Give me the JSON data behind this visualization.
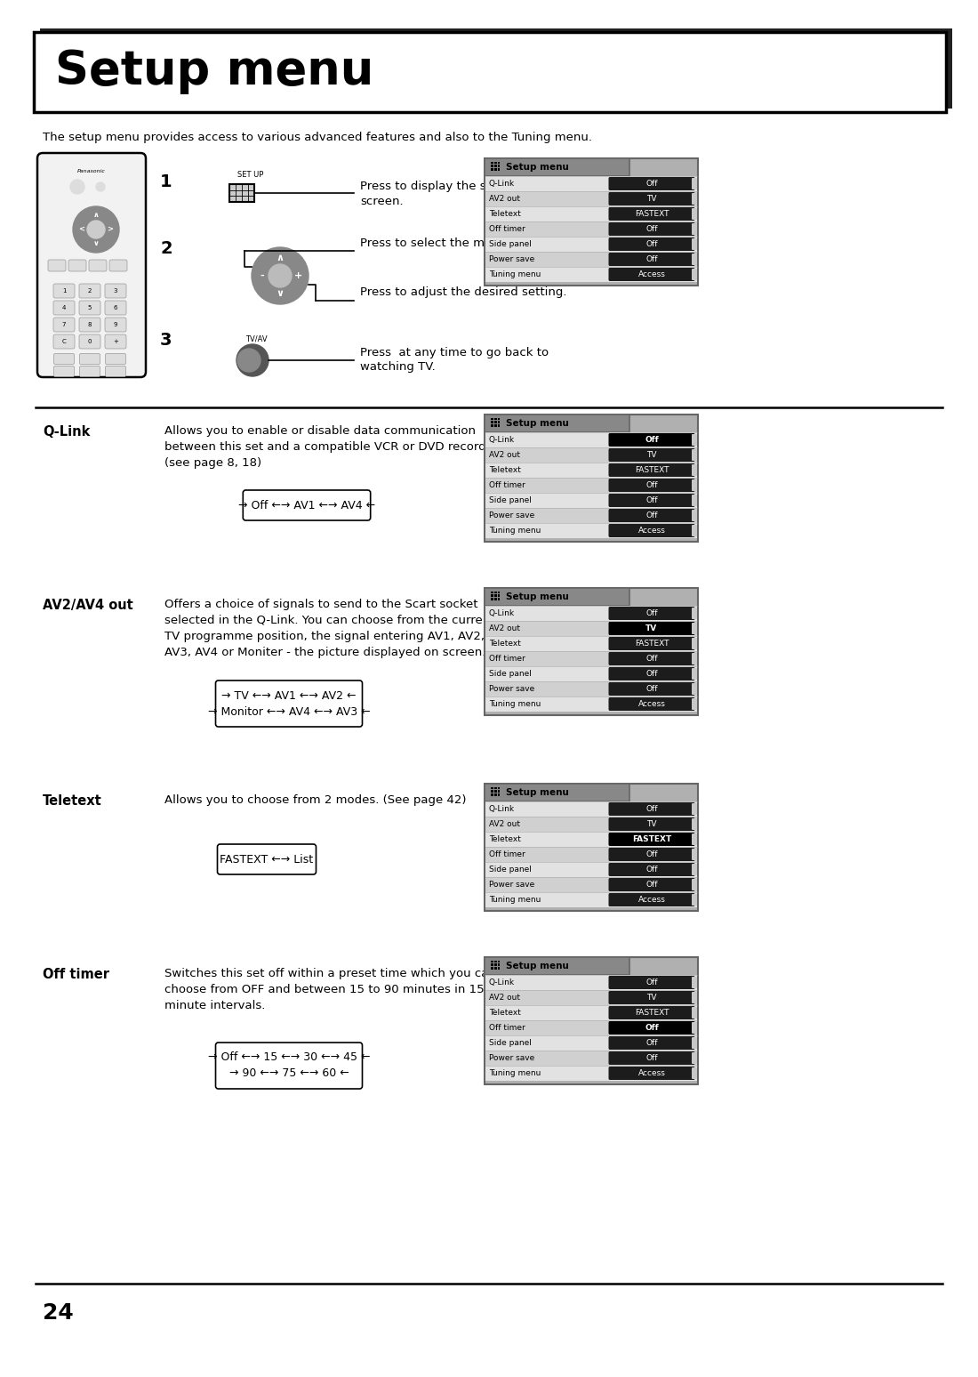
{
  "title": "Setup menu",
  "bg_color": "#ffffff",
  "intro_text": "The setup menu provides access to various advanced features and also to the Tuning menu.",
  "menu_items": [
    "Q-Link",
    "AV2 out",
    "Teletext",
    "Off timer",
    "Side panel",
    "Power save",
    "Tuning menu"
  ],
  "menu_values": [
    "Off",
    "TV",
    "FASTEXT",
    "Off",
    "Off",
    "Off",
    "Access"
  ],
  "page_number": "24",
  "step1_line1": "Press to display the setup menu",
  "step1_line2": "screen.",
  "step2_line1": "Press to select the menu to adjust.",
  "step2_line2": "Press to adjust the desired setting.",
  "step3_line1": "Press  at any time to go back to",
  "step3_line2": "watching TV.",
  "setup_label": "SET UP",
  "tvav_label": "TV/AV",
  "qlink_label": "Q-Link",
  "qlink_desc": [
    "Allows you to enable or disable data communication",
    "between this set and a compatible VCR or DVD recorder.",
    "(see page 8, 18)"
  ],
  "qlink_diagram": "→ Off ←→ AV1 ←→ AV4 ←",
  "av2_label": "AV2/AV4 out",
  "av2_desc": [
    "Offers a choice of signals to send to the Scart socket",
    "selected in the Q-Link. You can choose from the current",
    "TV programme position, the signal entering AV1, AV2,",
    "AV3, AV4 or Moniter - the picture displayed on screen."
  ],
  "av2_diagram1": "→ TV ←→ AV1 ←→ AV2 ←",
  "av2_diagram2": "→ Monitor ←→ AV4 ←→ AV3 ←",
  "teletext_label": "Teletext",
  "teletext_desc": [
    "Allows you to choose from 2 modes. (See page 42)"
  ],
  "teletext_diagram": "FASTEXT ←→ List",
  "offtimer_label": "Off timer",
  "offtimer_desc": [
    "Switches this set off within a preset time which you can",
    "choose from OFF and between 15 to 90 minutes in 15",
    "minute intervals."
  ],
  "offtimer_diagram1": "→ Off ←→ 15 ←→ 30 ←→ 45 ←",
  "offtimer_diagram2": "→ 90 ←→ 75 ←→ 60 ←"
}
